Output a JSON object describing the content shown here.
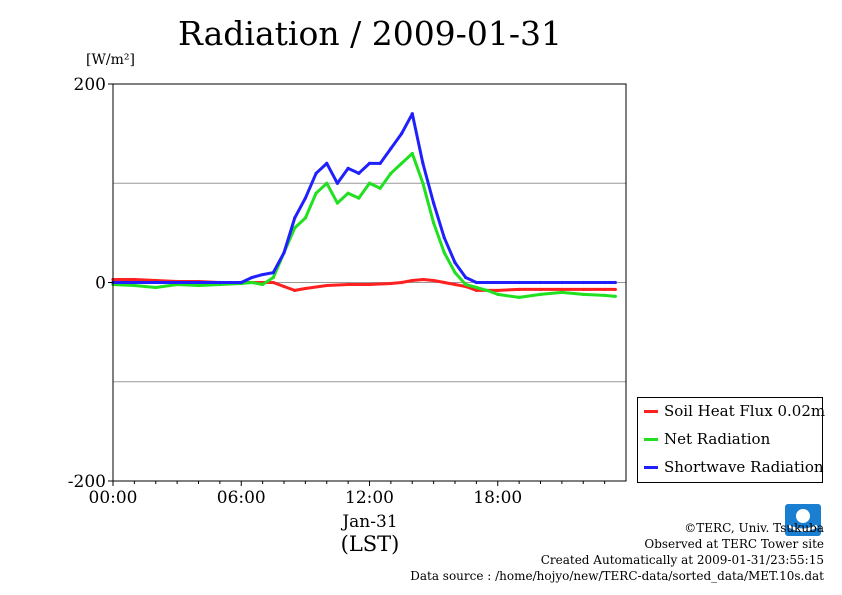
{
  "title": "Radiation / 2009-01-31",
  "unit_label": "[W/m²]",
  "x_date_label": "Jan-31",
  "x_axis_label": "(LST)",
  "credits": {
    "line1": "©TERC, Univ. Tsukuba",
    "line2": "Observed at TERC Tower site",
    "line3": "Created Automatically at 2009-01-31/23:55:15",
    "line4": "Data source : /home/hojyo/new/TERC-data/sorted_data/MET.10s.dat"
  },
  "colors": {
    "soil": "#ff2020",
    "net": "#20e020",
    "shortwave": "#2020ff",
    "grid": "#999999"
  },
  "chart_data": {
    "type": "line",
    "title": "Radiation / 2009-01-31",
    "ylabel": "[W/m²]",
    "xlabel": "(LST)",
    "xlim": [
      0,
      24
    ],
    "ylim": [
      -200,
      200
    ],
    "x_ticks": [
      {
        "v": 0,
        "label": "00:00"
      },
      {
        "v": 6,
        "label": "06:00"
      },
      {
        "v": 12,
        "label": "12:00"
      },
      {
        "v": 18,
        "label": "18:00"
      }
    ],
    "y_ticks": [
      {
        "v": 200,
        "label": "200"
      },
      {
        "v": 0,
        "label": "0"
      },
      {
        "v": -200,
        "label": "-200"
      }
    ],
    "grid_y": [
      100,
      0,
      -100
    ],
    "legend_position": "bottom-right",
    "series": [
      {
        "name": "Soil Heat Flux 0.02m",
        "color_key": "soil",
        "x": [
          0,
          1,
          2,
          3,
          4,
          5,
          6,
          7,
          7.5,
          8,
          8.5,
          9,
          10,
          11,
          12,
          13,
          13.5,
          14,
          14.5,
          15,
          15.5,
          16,
          16.5,
          17,
          17.5,
          18,
          19,
          20,
          21,
          22,
          23,
          23.5
        ],
        "y": [
          3,
          3,
          2,
          1,
          1,
          0,
          0,
          0,
          0,
          -4,
          -8,
          -6,
          -3,
          -2,
          -2,
          -1,
          0,
          2,
          3,
          2,
          0,
          -2,
          -4,
          -8,
          -8,
          -8,
          -7,
          -7,
          -7,
          -7,
          -7,
          -7
        ]
      },
      {
        "name": "Net Radiation",
        "color_key": "net",
        "x": [
          0,
          1,
          2,
          3,
          4,
          5,
          6,
          6.5,
          7,
          7.5,
          8,
          8.5,
          9,
          9.5,
          10,
          10.5,
          11,
          11.5,
          12,
          12.5,
          13,
          13.5,
          14,
          14.5,
          15,
          15.5,
          16,
          16.5,
          17,
          17.5,
          18,
          19,
          20,
          21,
          22,
          23,
          23.5
        ],
        "y": [
          -2,
          -3,
          -5,
          -2,
          -3,
          -2,
          -1,
          0,
          -2,
          5,
          30,
          55,
          65,
          90,
          100,
          80,
          90,
          85,
          100,
          95,
          110,
          120,
          130,
          100,
          60,
          30,
          10,
          -2,
          -5,
          -8,
          -12,
          -15,
          -12,
          -10,
          -12,
          -13,
          -14
        ]
      },
      {
        "name": "Shortwave Radiation",
        "color_key": "shortwave",
        "x": [
          0,
          1,
          2,
          3,
          4,
          5,
          6,
          6.5,
          7,
          7.5,
          8,
          8.5,
          9,
          9.5,
          10,
          10.5,
          11,
          11.5,
          12,
          12.5,
          13,
          13.5,
          14,
          14.5,
          15,
          15.5,
          16,
          16.5,
          17,
          17.5,
          18,
          19,
          20,
          21,
          22,
          23,
          23.5
        ],
        "y": [
          0,
          0,
          0,
          0,
          0,
          0,
          0,
          5,
          8,
          10,
          30,
          65,
          85,
          110,
          120,
          100,
          115,
          110,
          120,
          120,
          135,
          150,
          170,
          120,
          80,
          45,
          20,
          5,
          0,
          0,
          0,
          0,
          0,
          0,
          0,
          0,
          0
        ]
      }
    ]
  }
}
